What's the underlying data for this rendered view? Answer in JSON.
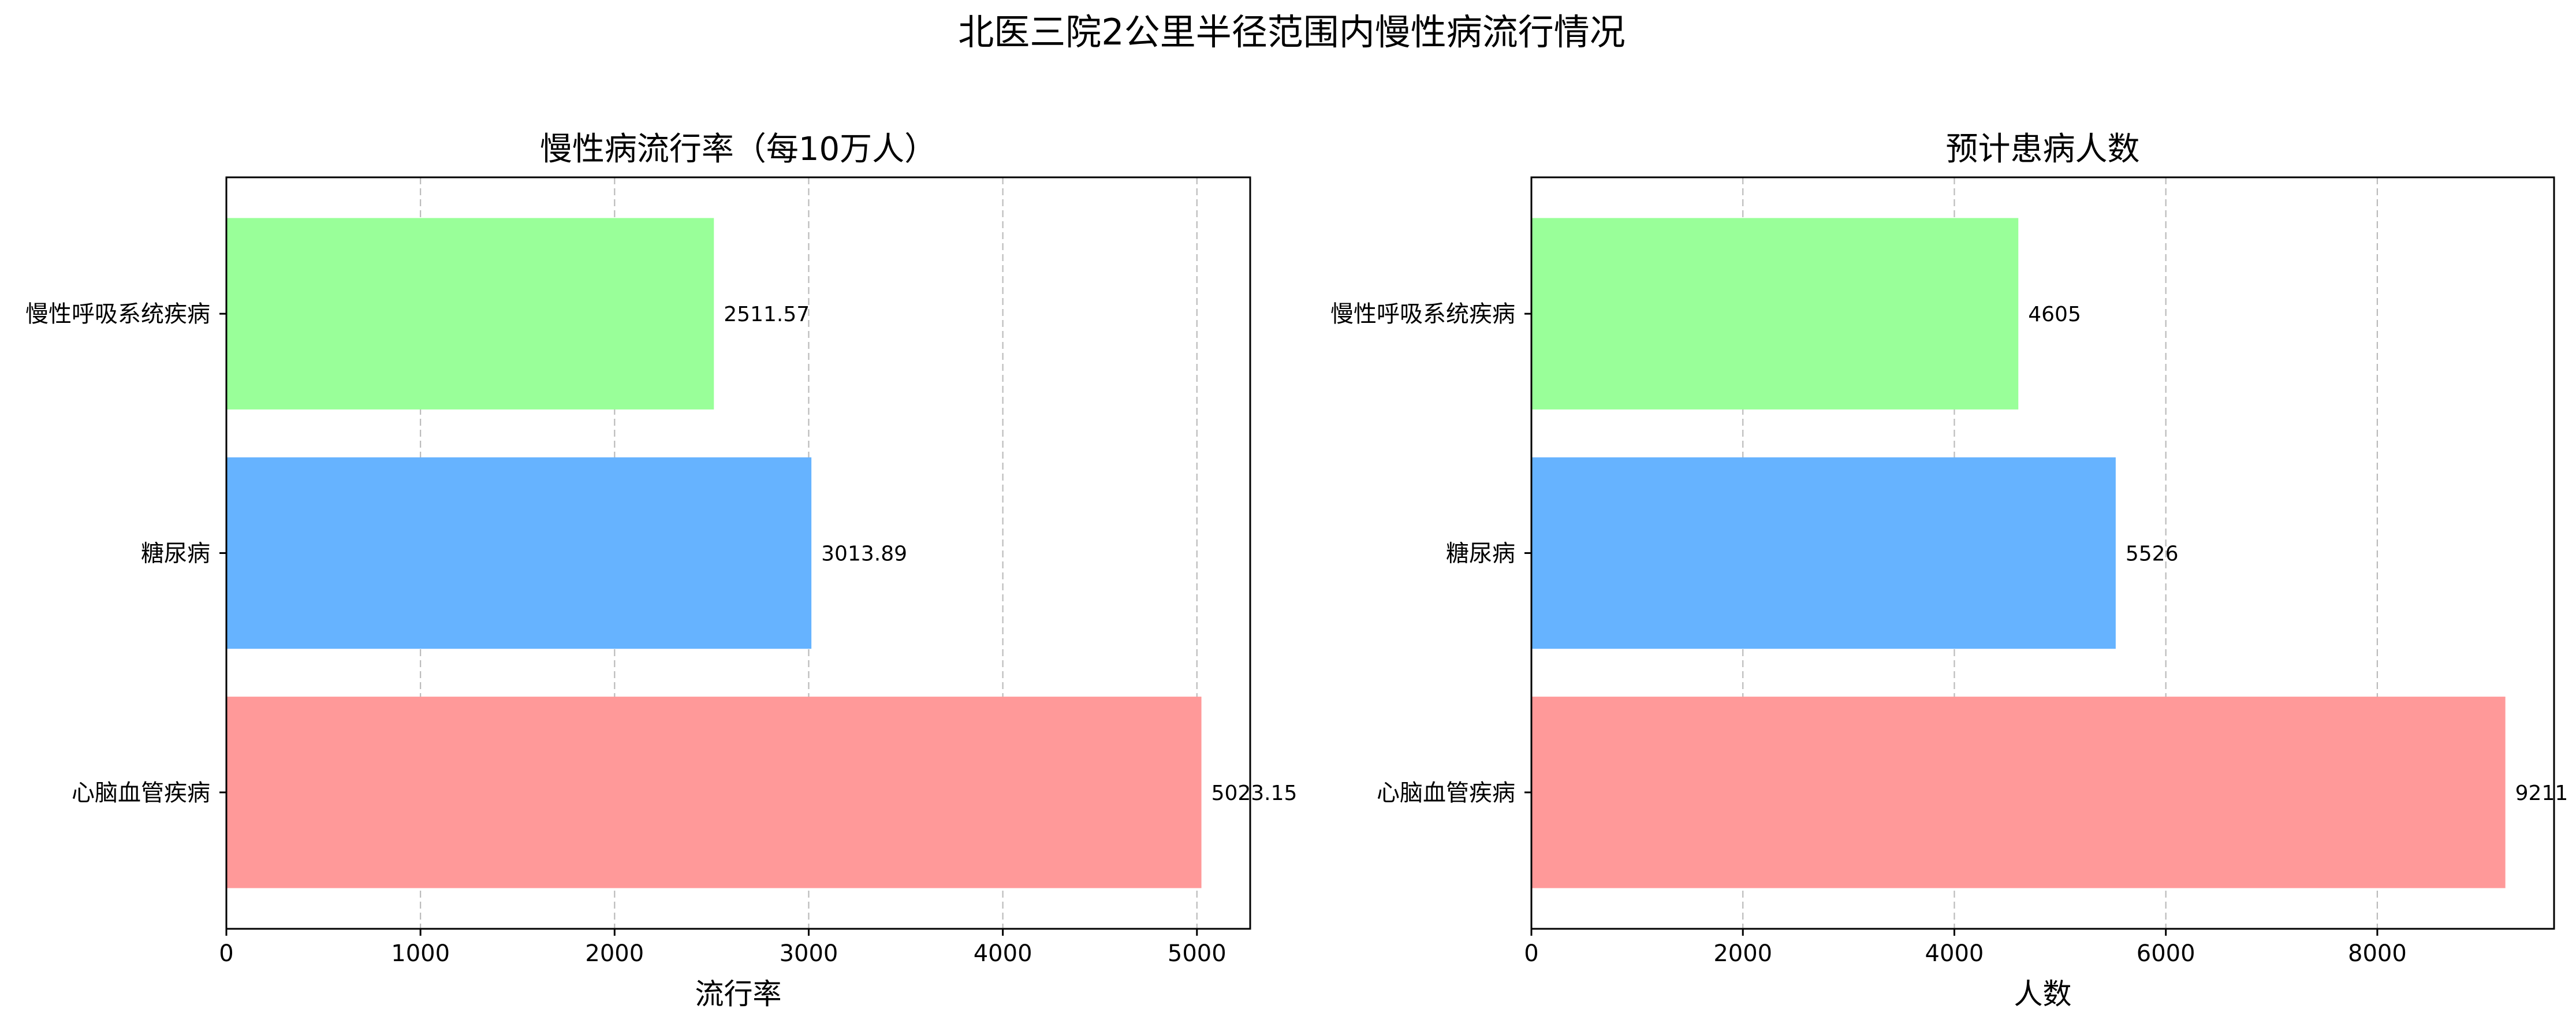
{
  "figure": {
    "title": "北医三院2公里半径范围内慢性病流行情况"
  },
  "colors": {
    "cardio": "#ff9999",
    "diabetes": "#66b3ff",
    "respiratory": "#99ff99"
  },
  "chart_data": [
    {
      "type": "bar",
      "orientation": "horizontal",
      "title": "慢性病流行率（每10万人）",
      "xlabel": "流行率",
      "ylabel": "",
      "categories": [
        "心脑血管疾病",
        "糖尿病",
        "慢性呼吸系统疾病"
      ],
      "values": [
        5023.15,
        3013.89,
        2511.57
      ],
      "value_labels": [
        "5023.15",
        "3013.89",
        "2511.57"
      ],
      "xlim": [
        0,
        5274.3
      ],
      "xticks": [
        0,
        1000,
        2000,
        3000,
        4000,
        5000
      ],
      "xtick_labels": [
        "0",
        "1000",
        "2000",
        "3000",
        "4000",
        "5000"
      ],
      "grid": "x-dashed",
      "legend": "none"
    },
    {
      "type": "bar",
      "orientation": "horizontal",
      "title": "预计患病人数",
      "xlabel": "人数",
      "ylabel": "",
      "categories": [
        "心脑血管疾病",
        "糖尿病",
        "慢性呼吸系统疾病"
      ],
      "values": [
        9211,
        5526,
        4605
      ],
      "value_labels": [
        "9211",
        "5526",
        "4605"
      ],
      "xlim": [
        0,
        9671.55
      ],
      "xticks": [
        0,
        2000,
        4000,
        6000,
        8000
      ],
      "xtick_labels": [
        "0",
        "2000",
        "4000",
        "6000",
        "8000"
      ],
      "grid": "x-dashed",
      "legend": "none"
    }
  ]
}
